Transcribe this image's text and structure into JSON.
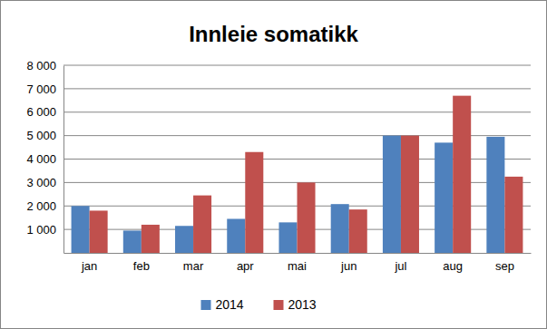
{
  "chart_data": {
    "type": "bar",
    "title": "Innleie somatikk",
    "categories": [
      "jan",
      "feb",
      "mar",
      "apr",
      "mai",
      "jun",
      "jul",
      "aug",
      "sep"
    ],
    "series": [
      {
        "name": "2014",
        "color": "#4f81bd",
        "values": [
          2000,
          950,
          1150,
          1450,
          1300,
          2080,
          5000,
          4700,
          4950
        ]
      },
      {
        "name": "2013",
        "color": "#c0504d",
        "values": [
          1800,
          1200,
          2450,
          4300,
          3000,
          1850,
          5000,
          6700,
          3250
        ]
      }
    ],
    "ylim": [
      0,
      8000
    ],
    "yticks": [
      {
        "value": 1000,
        "label": "1 000"
      },
      {
        "value": 2000,
        "label": "2 000"
      },
      {
        "value": 3000,
        "label": "3 000"
      },
      {
        "value": 4000,
        "label": "4 000"
      },
      {
        "value": 5000,
        "label": "5 000"
      },
      {
        "value": 6000,
        "label": "6 000"
      },
      {
        "value": 7000,
        "label": "7 000"
      },
      {
        "value": 8000,
        "label": "8 000"
      }
    ],
    "grid": true,
    "legend": "bottom"
  }
}
